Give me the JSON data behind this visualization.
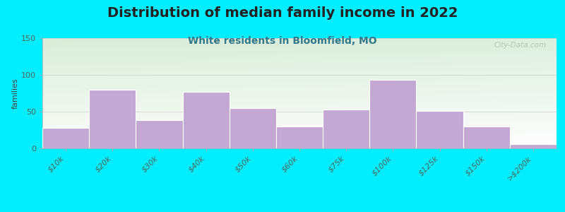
{
  "title": "Distribution of median family income in 2022",
  "subtitle": "White residents in Bloomfield, MO",
  "ylabel": "families",
  "categories": [
    "$10k",
    "$20k",
    "$30k",
    "$40k",
    "$50k",
    "$60k",
    "$75k",
    "$100k",
    "$125k",
    "$150k",
    ">$200k"
  ],
  "values": [
    28,
    80,
    38,
    77,
    55,
    30,
    53,
    93,
    51,
    30,
    6
  ],
  "bar_color": "#c4a8d4",
  "background_outer": "#00eeff",
  "plot_bg_top": "#d8ecd0",
  "plot_bg_bottom": "#f8fcf8",
  "ylim": [
    0,
    150
  ],
  "yticks": [
    0,
    50,
    100,
    150
  ],
  "title_fontsize": 14,
  "subtitle_fontsize": 10,
  "ylabel_fontsize": 8,
  "tick_fontsize": 8,
  "watermark_text": "City-Data.com"
}
